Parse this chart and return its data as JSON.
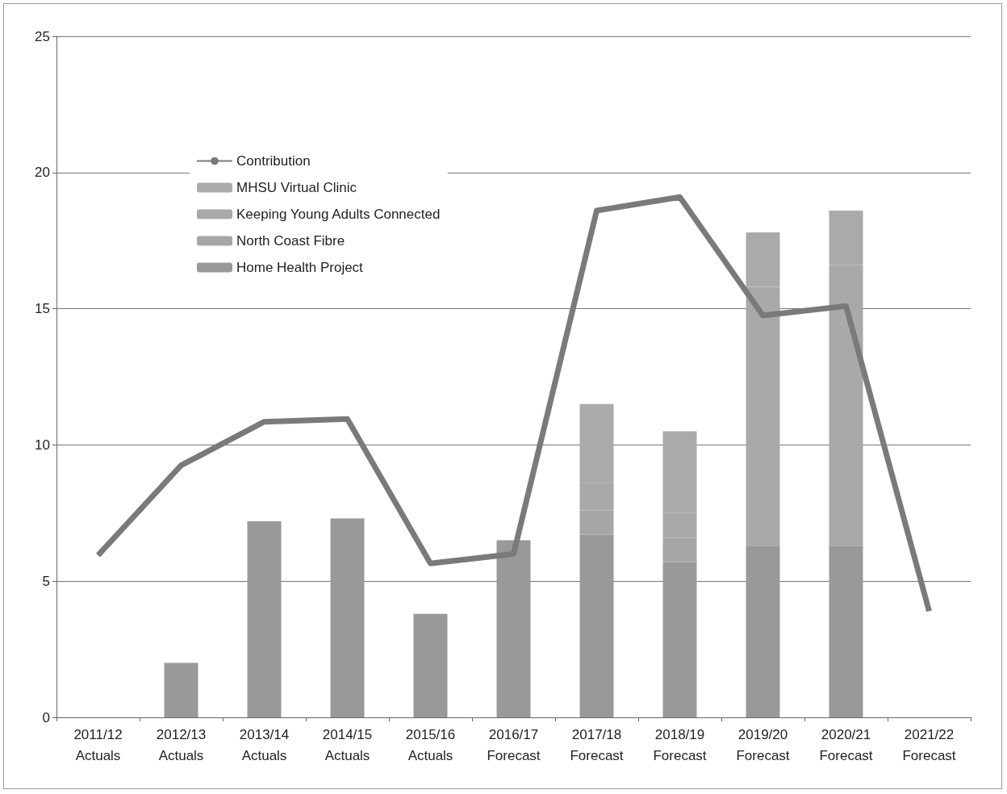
{
  "chart_data": {
    "type": "bar",
    "stacked": true,
    "categories": [
      "2011/12\nActuals",
      "2012/13\nActuals",
      "2013/14\nActuals",
      "2014/15\nActuals",
      "2015/16\nActuals",
      "2016/17\nForecast",
      "2017/18\nForecast",
      "2018/19\nForecast",
      "2019/20\nForecast",
      "2020/21\nForecast",
      "2021/22\nForecast"
    ],
    "series": [
      {
        "name": "Home Health Project",
        "color": "#999999",
        "values": [
          null,
          2.0,
          7.2,
          7.3,
          3.8,
          6.5,
          6.7,
          5.7,
          6.3,
          6.3,
          null
        ]
      },
      {
        "name": "North Coast Fibre",
        "color": "#a6a6a6",
        "values": [
          null,
          null,
          null,
          null,
          null,
          null,
          0.9,
          0.9,
          null,
          null,
          null
        ]
      },
      {
        "name": "Keeping Young Adults Connected",
        "color": "#a9a9a9",
        "values": [
          null,
          null,
          null,
          null,
          null,
          null,
          1.0,
          0.9,
          9.5,
          10.3,
          null
        ]
      },
      {
        "name": "MHSU Virtual Clinic",
        "color": "#aaaaaa",
        "values": [
          null,
          null,
          null,
          null,
          null,
          null,
          2.9,
          3.0,
          2.0,
          2.0,
          null
        ]
      },
      {
        "name": "Contribution",
        "type": "line",
        "color": "#7a7a7a",
        "values": [
          5.95,
          9.25,
          10.85,
          10.95,
          5.65,
          6.0,
          18.6,
          19.1,
          14.75,
          15.1,
          3.9
        ]
      }
    ],
    "ylim": [
      0,
      25
    ],
    "yticks": [
      0,
      5,
      10,
      15,
      20,
      25
    ],
    "grid": "y",
    "legend": "top left",
    "marker": "none"
  }
}
